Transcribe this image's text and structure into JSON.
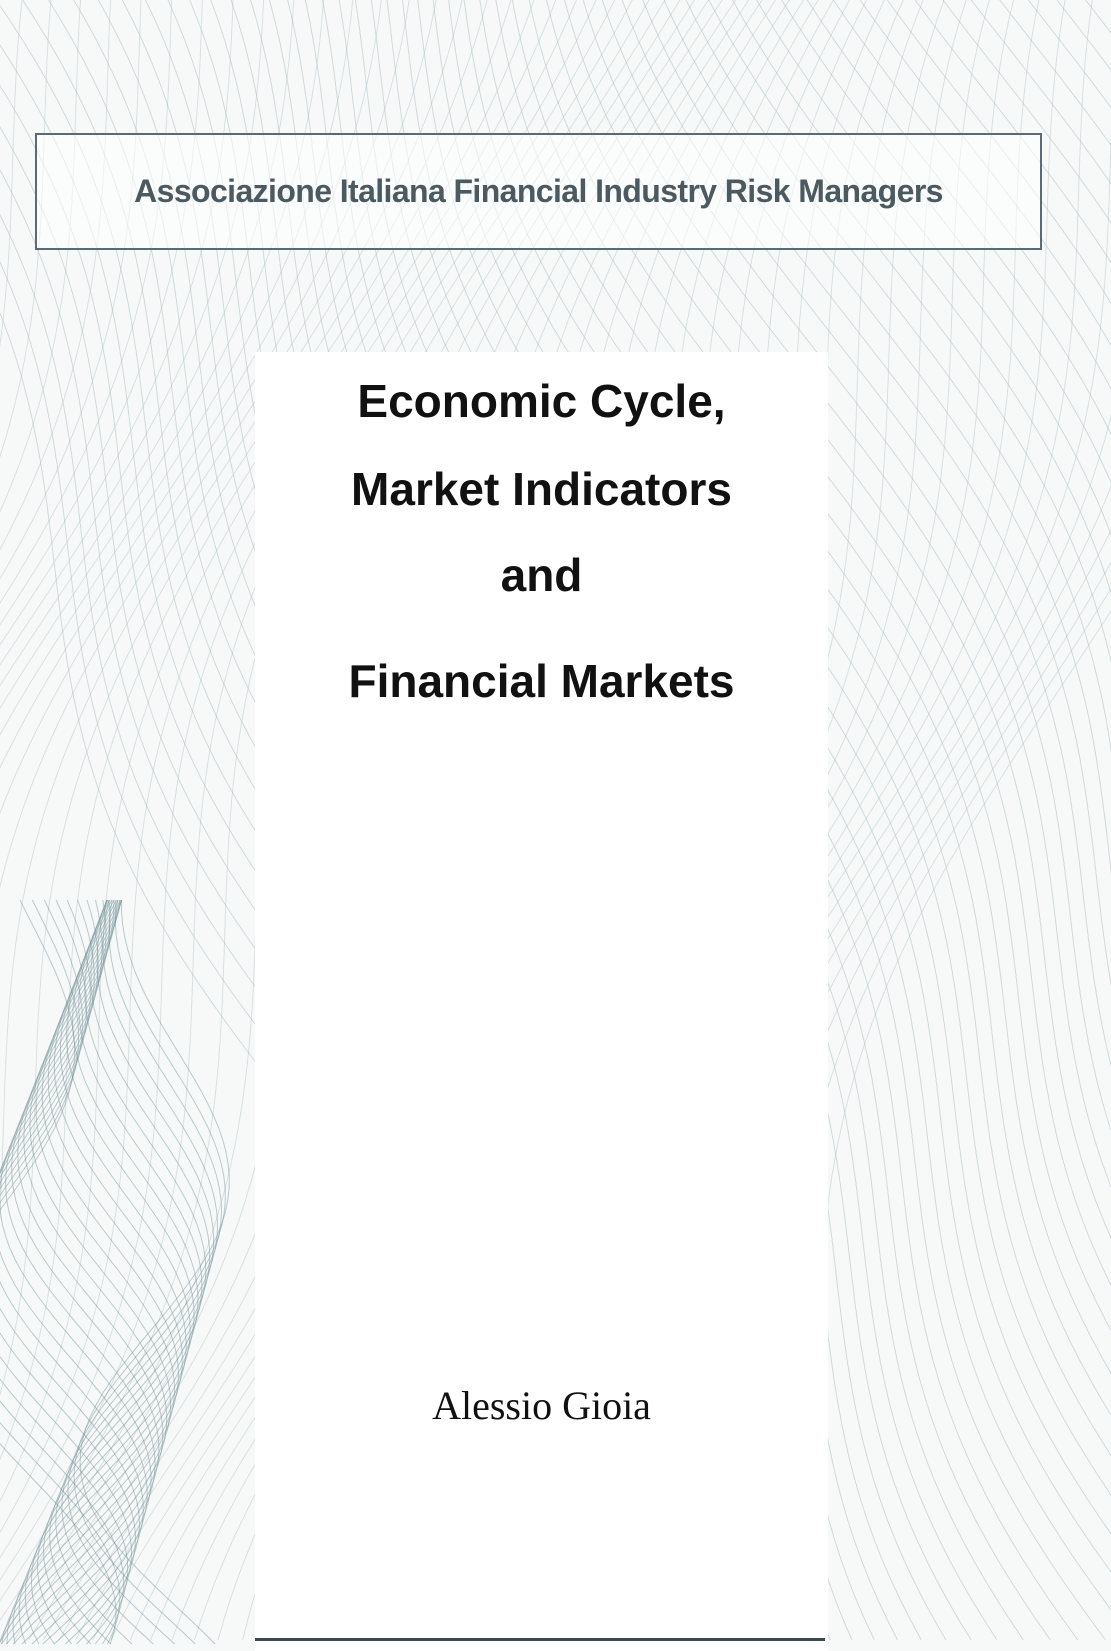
{
  "header": {
    "organization": "Associazione Italiana Financial Industry Risk Managers"
  },
  "title": {
    "lines": [
      "Economic Cycle,",
      "Market Indicators",
      "and",
      "Financial Markets"
    ]
  },
  "author": "Alessio Gioia"
}
